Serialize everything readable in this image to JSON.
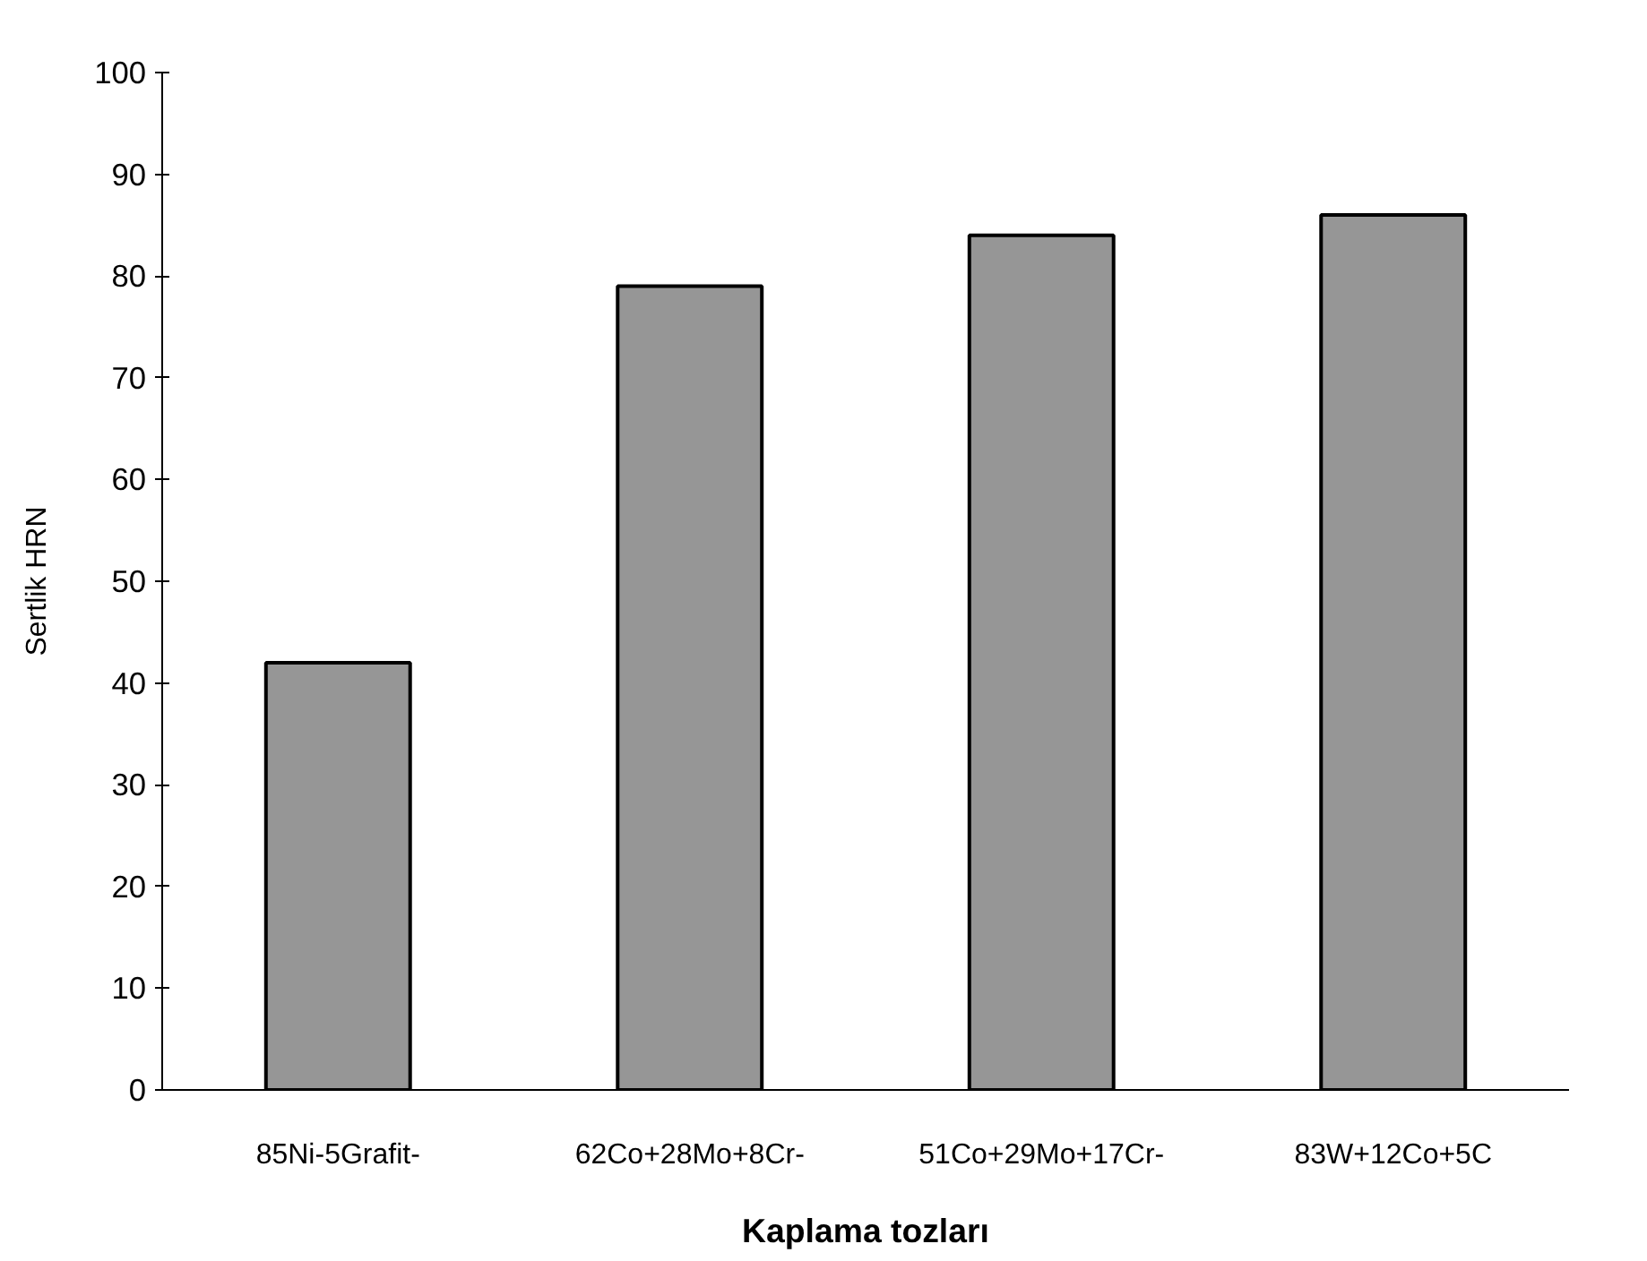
{
  "chart_data": {
    "type": "bar",
    "xlabel": "Kaplama tozları",
    "ylabel": "Sertlik HRN",
    "categories": [
      "85Ni-5Grafit-",
      "62Co+28Mo+8Cr-",
      "51Co+29Mo+17Cr-",
      "83W+12Co+5C"
    ],
    "values": [
      42,
      79,
      84,
      86
    ],
    "color": "#969696",
    "ylim": [
      0,
      100
    ],
    "yticks": [
      0,
      10,
      20,
      30,
      40,
      50,
      60,
      70,
      80,
      90,
      100
    ],
    "grid": false
  }
}
